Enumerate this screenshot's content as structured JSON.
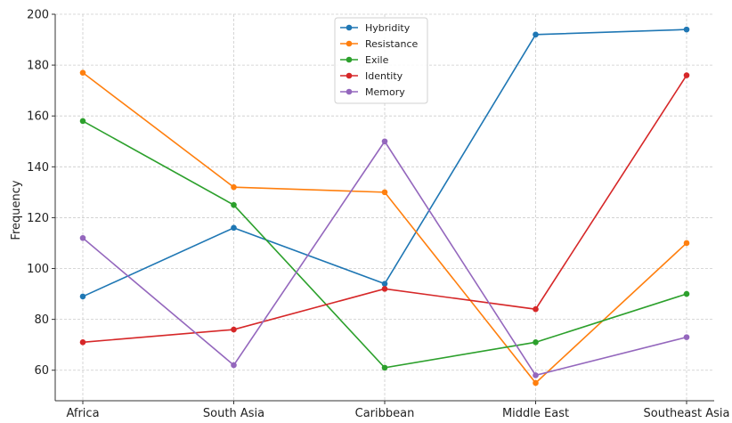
{
  "chart_data": {
    "type": "line",
    "title": "",
    "xlabel": "",
    "ylabel": "Frequency",
    "categories": [
      "Africa",
      "South Asia",
      "Caribbean",
      "Middle East",
      "Southeast Asia"
    ],
    "ylim": [
      48,
      200
    ],
    "yticks": [
      60,
      80,
      100,
      120,
      140,
      160,
      180,
      200
    ],
    "grid": true,
    "legend_position": "top-center",
    "series": [
      {
        "name": "Hybridity",
        "color": "#1f77b4",
        "values": [
          89,
          116,
          94,
          192,
          194
        ]
      },
      {
        "name": "Resistance",
        "color": "#ff7f0e",
        "values": [
          177,
          132,
          130,
          55,
          110
        ]
      },
      {
        "name": "Exile",
        "color": "#2ca02c",
        "values": [
          158,
          125,
          61,
          71,
          90
        ]
      },
      {
        "name": "Identity",
        "color": "#d62728",
        "values": [
          71,
          76,
          92,
          84,
          176
        ]
      },
      {
        "name": "Memory",
        "color": "#9467bd",
        "values": [
          112,
          62,
          150,
          58,
          73
        ]
      }
    ]
  }
}
